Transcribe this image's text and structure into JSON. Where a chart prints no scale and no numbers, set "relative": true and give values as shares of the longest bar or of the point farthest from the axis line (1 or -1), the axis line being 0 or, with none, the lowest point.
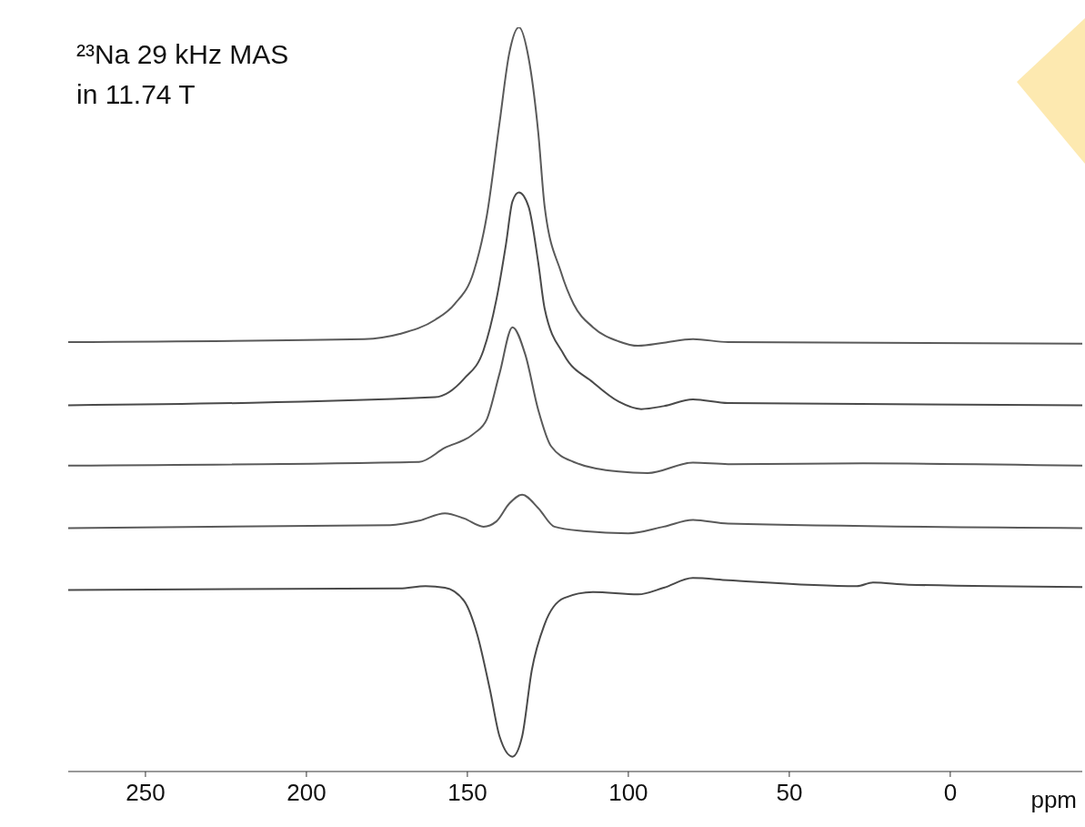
{
  "chart_data": {
    "type": "line",
    "relative": true,
    "xlabel": "ppm",
    "xlim": [
      274,
      -41
    ],
    "xticks": [
      250,
      200,
      150,
      100,
      50,
      0
    ],
    "annotations": [
      "²³Na 29 kHz MAS",
      "in 11.74 T"
    ],
    "series": [
      {
        "color": "#5a5a5a",
        "x": [
          274,
          182,
          171,
          160,
          154,
          148,
          144,
          140,
          137,
          134,
          131,
          128,
          126,
          121,
          117,
          111,
          103,
          97,
          89,
          80,
          69,
          -41
        ],
        "values": [
          0.577,
          0.581,
          0.588,
          0.607,
          0.628,
          0.672,
          0.746,
          0.872,
          0.965,
          1.0,
          0.959,
          0.859,
          0.759,
          0.672,
          0.628,
          0.597,
          0.578,
          0.572,
          0.576,
          0.581,
          0.577,
          0.575
        ]
      },
      {
        "color": "#4a4a4a",
        "x": [
          274,
          160,
          151,
          145,
          141,
          138,
          136,
          134,
          131,
          128,
          126,
          120,
          111,
          103,
          96,
          89,
          80,
          69,
          -41
        ],
        "values": [
          0.492,
          0.503,
          0.528,
          0.566,
          0.634,
          0.709,
          0.766,
          0.778,
          0.759,
          0.684,
          0.622,
          0.56,
          0.523,
          0.497,
          0.487,
          0.491,
          0.5,
          0.495,
          0.492
        ]
      },
      {
        "color": "#5a5a5a",
        "x": [
          274,
          165,
          157,
          148,
          144,
          140,
          136,
          132,
          128,
          124,
          117,
          103,
          94,
          80,
          69,
          27,
          -41
        ],
        "values": [
          0.411,
          0.416,
          0.435,
          0.454,
          0.473,
          0.535,
          0.597,
          0.56,
          0.486,
          0.437,
          0.416,
          0.403,
          0.401,
          0.415,
          0.413,
          0.414,
          0.411
        ]
      },
      {
        "color": "#5a5a5a",
        "x": [
          274,
          174,
          165,
          157,
          151,
          145,
          141,
          137,
          133,
          128,
          123,
          114,
          100,
          89,
          80,
          69,
          -41
        ],
        "values": [
          0.327,
          0.331,
          0.337,
          0.347,
          0.34,
          0.329,
          0.336,
          0.36,
          0.372,
          0.354,
          0.329,
          0.323,
          0.32,
          0.329,
          0.338,
          0.333,
          0.327
        ]
      },
      {
        "color": "#4a4a4a",
        "x": [
          274,
          171,
          163,
          157,
          151,
          147,
          143,
          140,
          136,
          133,
          130,
          126,
          120,
          111,
          97,
          89,
          80,
          69,
          29,
          24,
          13,
          -41
        ],
        "values": [
          0.244,
          0.246,
          0.249,
          0.247,
          0.229,
          0.185,
          0.11,
          0.047,
          0.02,
          0.047,
          0.136,
          0.198,
          0.233,
          0.241,
          0.238,
          0.247,
          0.26,
          0.257,
          0.249,
          0.254,
          0.251,
          0.248
        ]
      }
    ]
  }
}
